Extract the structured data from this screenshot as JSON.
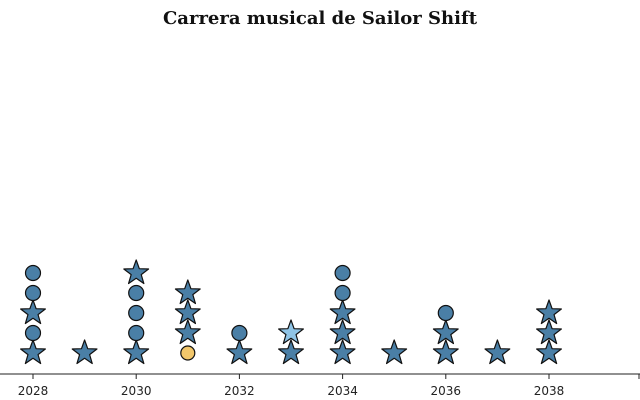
{
  "chart_data": {
    "type": "scatter",
    "title": "Carrera musical de Sailor Shift",
    "xlabel": "",
    "ylabel": "",
    "x_ticks": [
      "2028",
      "2030",
      "2032",
      "2034",
      "2036",
      "2038"
    ],
    "x_visible_range": [
      2028,
      2039
    ],
    "grid": false,
    "colors": {
      "star": "#4a7fa6",
      "circle": "#4a7fa6",
      "star_highlight": "#8fc4e6",
      "circle_highlight": "#f2c76b",
      "outline": "#111111"
    },
    "columns": [
      {
        "year": 2028,
        "marks": [
          {
            "shape": "star"
          },
          {
            "shape": "circle"
          },
          {
            "shape": "star"
          },
          {
            "shape": "circle"
          },
          {
            "shape": "circle"
          }
        ]
      },
      {
        "year": 2029,
        "marks": [
          {
            "shape": "star"
          }
        ]
      },
      {
        "year": 2030,
        "marks": [
          {
            "shape": "star"
          },
          {
            "shape": "circle"
          },
          {
            "shape": "circle"
          },
          {
            "shape": "circle"
          },
          {
            "shape": "star"
          }
        ]
      },
      {
        "year": 2031,
        "marks": [
          {
            "shape": "circle",
            "highlight": true
          },
          {
            "shape": "star"
          },
          {
            "shape": "star"
          },
          {
            "shape": "star"
          }
        ]
      },
      {
        "year": 2032,
        "marks": [
          {
            "shape": "star"
          },
          {
            "shape": "circle"
          }
        ]
      },
      {
        "year": 2033,
        "marks": [
          {
            "shape": "star"
          },
          {
            "shape": "star",
            "highlight": true
          }
        ]
      },
      {
        "year": 2034,
        "marks": [
          {
            "shape": "star"
          },
          {
            "shape": "star"
          },
          {
            "shape": "star"
          },
          {
            "shape": "circle"
          },
          {
            "shape": "circle"
          }
        ]
      },
      {
        "year": 2035,
        "marks": [
          {
            "shape": "star"
          }
        ]
      },
      {
        "year": 2036,
        "marks": [
          {
            "shape": "star"
          },
          {
            "shape": "star"
          },
          {
            "shape": "circle"
          }
        ]
      },
      {
        "year": 2037,
        "marks": [
          {
            "shape": "star"
          }
        ]
      },
      {
        "year": 2038,
        "marks": [
          {
            "shape": "star"
          },
          {
            "shape": "star"
          },
          {
            "shape": "star"
          }
        ]
      }
    ]
  }
}
